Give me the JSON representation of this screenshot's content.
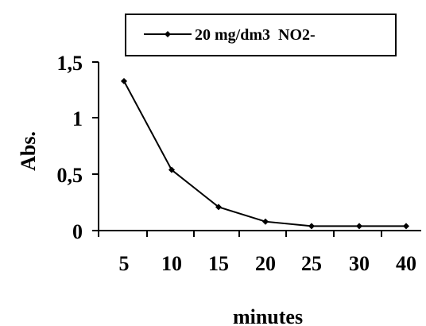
{
  "chart_data": {
    "type": "line",
    "title": "",
    "xlabel": "minutes",
    "ylabel": "Abs.",
    "categories": [
      "5",
      "10",
      "15",
      "20",
      "25",
      "30",
      "40"
    ],
    "series": [
      {
        "name": "20 mg/dm3  NO2-",
        "values": [
          1.33,
          0.54,
          0.21,
          0.08,
          0.04,
          0.04,
          0.04
        ],
        "color": "#000000",
        "marker": "diamond"
      }
    ],
    "yticks": [
      "0",
      "0,5",
      "1",
      "1,5"
    ],
    "ylim": [
      0,
      1.5
    ],
    "grid": false,
    "legend_position": "top-center"
  }
}
